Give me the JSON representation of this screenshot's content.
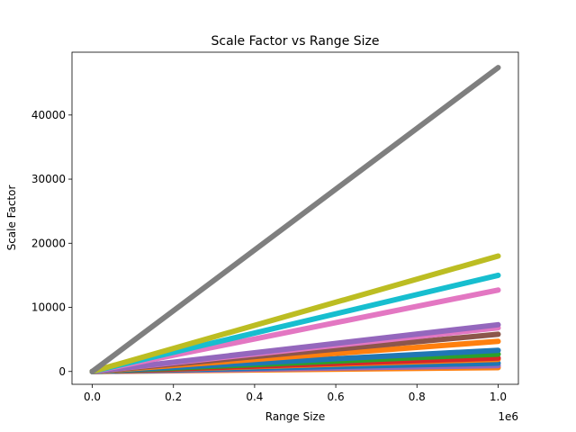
{
  "chart_data": {
    "type": "line",
    "title": "Scale Factor vs Range Size",
    "xlabel": "Range Size",
    "ylabel": "Scale Factor",
    "x_offset_label": "1e6",
    "xlim": [
      -50000,
      1050000
    ],
    "ylim": [
      -2000,
      49800
    ],
    "x_ticks": [
      0,
      200000,
      400000,
      600000,
      800000,
      1000000
    ],
    "x_tick_labels": [
      "0.0",
      "0.2",
      "0.4",
      "0.6",
      "0.8",
      "1.0"
    ],
    "y_ticks": [
      0,
      10000,
      20000,
      30000,
      40000
    ],
    "y_tick_labels": [
      "0",
      "10000",
      "20000",
      "30000",
      "40000"
    ],
    "grid": false,
    "legend": "none",
    "x": [
      0,
      1000000
    ],
    "series": [
      {
        "color": "#7f7f7f",
        "values": [
          0,
          47400
        ]
      },
      {
        "color": "#bcbd22",
        "values": [
          0,
          18000
        ]
      },
      {
        "color": "#17becf",
        "values": [
          0,
          15000
        ]
      },
      {
        "color": "#e377c2",
        "values": [
          0,
          12700
        ]
      },
      {
        "color": "#9467bd",
        "values": [
          0,
          7300
        ]
      },
      {
        "color": "#e377c2",
        "values": [
          0,
          6800
        ]
      },
      {
        "color": "#8c564b",
        "values": [
          0,
          5800
        ]
      },
      {
        "color": "#ff7f0e",
        "values": [
          0,
          4700
        ]
      },
      {
        "color": "#1f77b4",
        "values": [
          0,
          3300
        ]
      },
      {
        "color": "#2ca02c",
        "values": [
          0,
          2700
        ]
      },
      {
        "color": "#d62728",
        "values": [
          0,
          2100
        ]
      },
      {
        "color": "#ff7f0e",
        "values": [
          0,
          1900
        ]
      },
      {
        "color": "#1f77b4",
        "values": [
          0,
          1300
        ]
      },
      {
        "color": "#9467bd",
        "values": [
          0,
          900
        ]
      },
      {
        "color": "#ff7f0e",
        "values": [
          0,
          600
        ]
      }
    ]
  }
}
